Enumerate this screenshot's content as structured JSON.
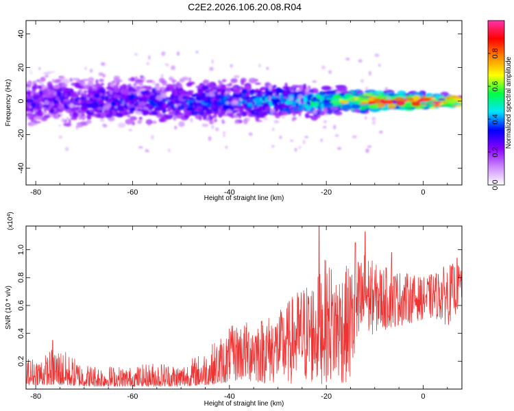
{
  "title": "C2E2.2026.106.20.08.R04",
  "chart_data": [
    {
      "type": "heatmap",
      "xlabel": "Height of straight line (km)",
      "ylabel": "Frequency (Hz)",
      "xlim": [
        -82,
        8
      ],
      "ylim": [
        -50,
        48
      ],
      "xticks": [
        -80,
        -60,
        -40,
        -20,
        0
      ],
      "yticks": [
        -40,
        -20,
        0,
        20,
        40
      ],
      "xtick_labels": [
        "-80",
        "-60",
        "-40",
        "-20",
        "0"
      ],
      "ytick_labels": [
        "-40",
        "-20",
        "0",
        "20",
        "40"
      ],
      "band_center_hz": 0,
      "band_halfwidth_hz": [
        [
          -82,
          14
        ],
        [
          -60,
          13
        ],
        [
          -40,
          11
        ],
        [
          -20,
          8
        ],
        [
          -10,
          5
        ],
        [
          8,
          3
        ]
      ],
      "mean_amplitude": [
        [
          -82,
          0.22
        ],
        [
          -60,
          0.28
        ],
        [
          -40,
          0.32
        ],
        [
          -20,
          0.45
        ],
        [
          -15,
          0.55
        ],
        [
          -10,
          0.72
        ],
        [
          0,
          0.82
        ],
        [
          8,
          0.9
        ]
      ]
    },
    {
      "type": "line",
      "xlabel": "Height of straight line (km)",
      "ylabel": "SNR (10 * v/v)",
      "yscale_label": "(x10",
      "yscale_exp": "4",
      "xlim": [
        -82,
        8
      ],
      "ylim": [
        0,
        1.17
      ],
      "xticks": [
        -80,
        -60,
        -40,
        -20,
        0
      ],
      "yticks": [
        0.2,
        0.4,
        0.6,
        0.8,
        1.0
      ],
      "xtick_labels": [
        "-80",
        "-60",
        "-40",
        "-20",
        "0"
      ],
      "ytick_labels": [
        "0.2",
        "0.4",
        "0.6",
        "0.8",
        "1.0"
      ],
      "color": "#ee3333",
      "envelope_x": [
        -82,
        -78,
        -76,
        -70,
        -60,
        -55,
        -50,
        -45,
        -40,
        -35,
        -30,
        -25,
        -22,
        -20,
        -18,
        -15,
        -13,
        -12,
        -10,
        -5,
        0,
        3,
        5,
        8
      ],
      "envelope_low": [
        0.03,
        0.03,
        0.03,
        0.02,
        0.02,
        0.02,
        0.02,
        0.03,
        0.05,
        0.04,
        0.03,
        0.03,
        0.02,
        0.05,
        0.03,
        0.03,
        0.25,
        0.35,
        0.4,
        0.45,
        0.5,
        0.5,
        0.45,
        0.6
      ],
      "envelope_high": [
        0.22,
        0.25,
        0.32,
        0.18,
        0.16,
        0.2,
        0.18,
        0.28,
        0.45,
        0.5,
        0.55,
        0.75,
        0.8,
        0.95,
        0.85,
        0.9,
        0.95,
        1.0,
        0.9,
        0.85,
        0.8,
        0.85,
        0.9,
        0.9
      ],
      "peaks": [
        {
          "x": -76.5,
          "y": 0.35
        },
        {
          "x": -21.5,
          "y": 1.17
        },
        {
          "x": -12,
          "y": 1.13
        },
        {
          "x": -14,
          "y": 1.05
        },
        {
          "x": -6.5,
          "y": 0.98
        },
        {
          "x": 7,
          "y": 0.94
        }
      ]
    },
    {
      "type": "colorbar",
      "label": "Normalized spectral amplitude",
      "range": [
        0,
        1
      ],
      "ticks": [
        0.0,
        0.2,
        0.4,
        0.6,
        0.8
      ],
      "tick_labels": [
        "0.0",
        "0.2",
        "0.4",
        "0.6",
        "0.8"
      ],
      "colors": [
        "#ffffff",
        "#cc88ff",
        "#8800ff",
        "#0000ff",
        "#00e5ff",
        "#00ff44",
        "#ffff00",
        "#ff8800",
        "#ff0000",
        "#ff33aa"
      ]
    }
  ]
}
